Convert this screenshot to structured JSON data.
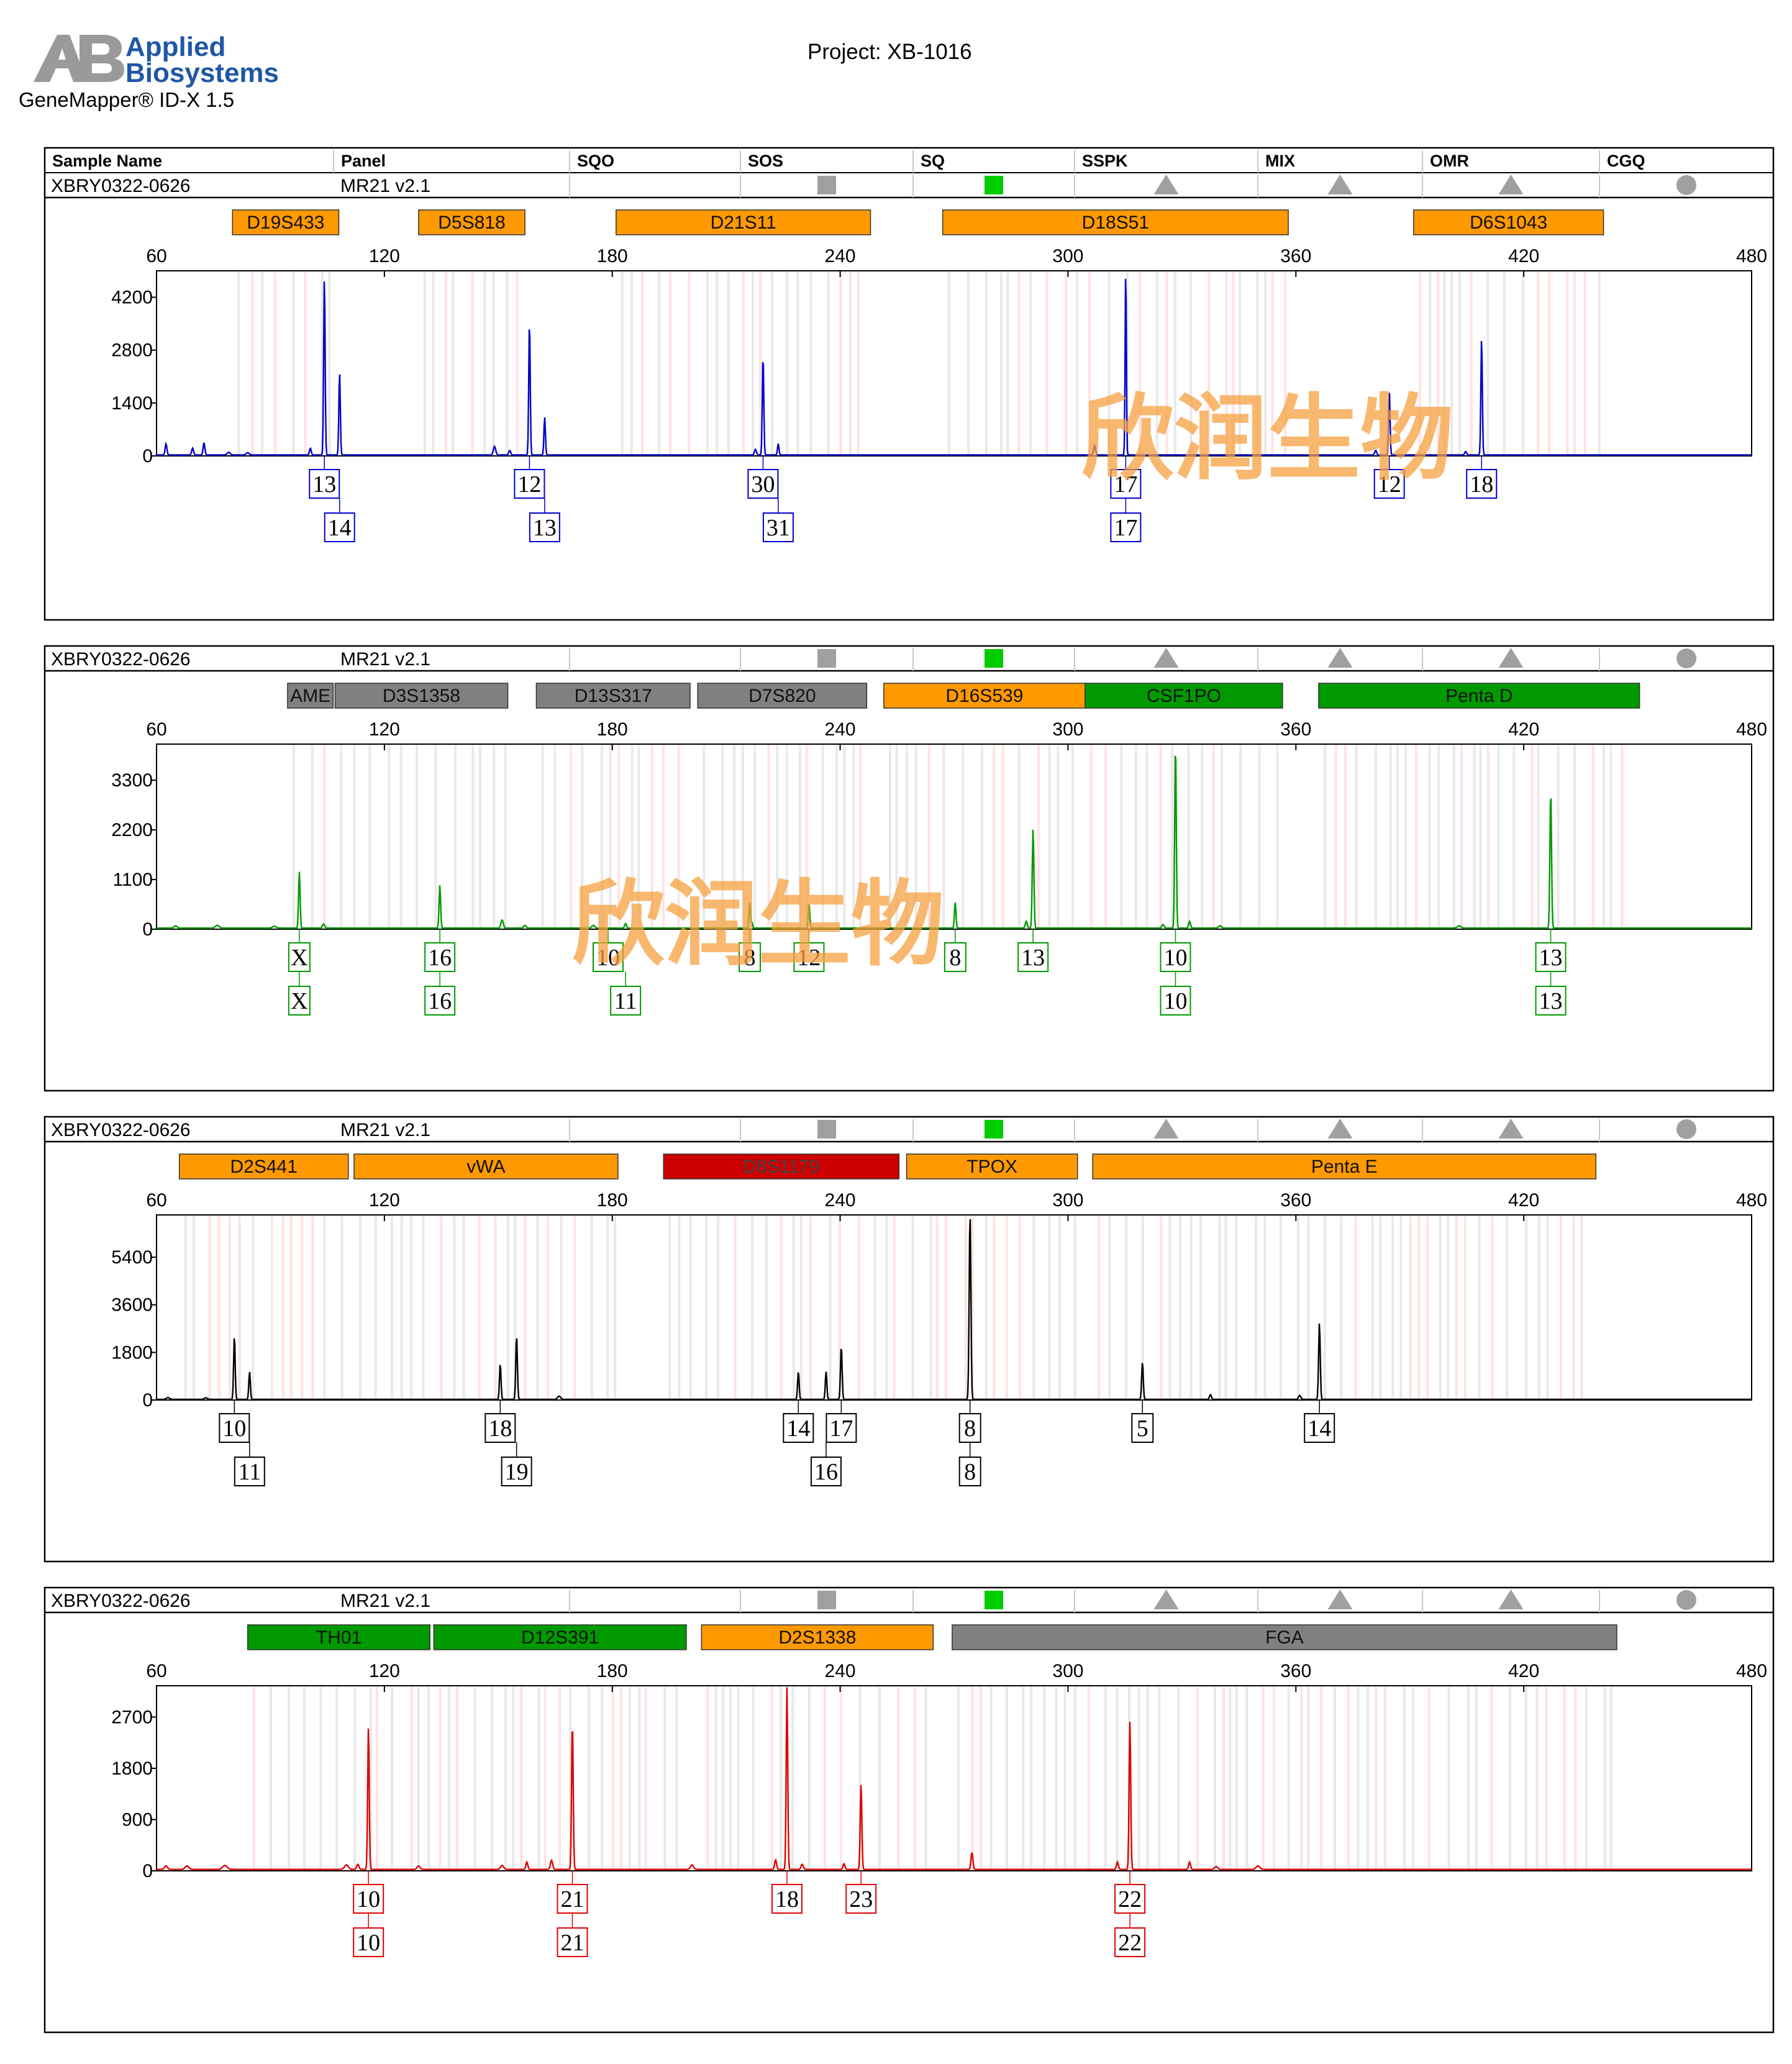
{
  "header": {
    "logo_line1": "Applied",
    "logo_line2": "Biosystems",
    "software": "GeneMapper® ID-X  1.5",
    "project": "Project: XB-1016"
  },
  "table_headers": [
    "Sample Name",
    "Panel",
    "SQO",
    "SOS",
    "SQ",
    "SSPK",
    "MIX",
    "OMR",
    "CGQ"
  ],
  "sample_row": {
    "sample_name": "XBRY0322-0626",
    "panel": "MR21  v2.1",
    "quality_flags": [
      {
        "column": "SOS",
        "shape": "square",
        "color": "#a0a0a0"
      },
      {
        "column": "SQ",
        "shape": "square",
        "color": "#00cc00"
      },
      {
        "column": "SSPK",
        "shape": "triangle",
        "color": "#a0a0a0"
      },
      {
        "column": "MIX",
        "shape": "triangle",
        "color": "#a0a0a0"
      },
      {
        "column": "OMR",
        "shape": "triangle",
        "color": "#a0a0a0"
      },
      {
        "column": "CGQ",
        "shape": "circle",
        "color": "#a0a0a0"
      }
    ]
  },
  "watermark": "欣润生物",
  "colors": {
    "orange": "#ff9900",
    "gray": "#808080",
    "green": "#009900",
    "red": "#cc0000",
    "bin_gray": "#e9e9e9",
    "bin_pink": "#ffe3e3",
    "watermark": "#f5a040"
  },
  "chart_data": [
    {
      "type": "line",
      "dye": "blue",
      "color": "#0000cc",
      "x_range": [
        60,
        480
      ],
      "x_ticks": [
        60,
        120,
        180,
        240,
        300,
        360,
        420,
        480
      ],
      "y_range": [
        0,
        4900
      ],
      "y_ticks": [
        0,
        1400,
        2800,
        4200
      ],
      "loci": [
        {
          "name": "D19S433",
          "start": 80,
          "end": 108,
          "color": "orange"
        },
        {
          "name": "D5S818",
          "start": 129,
          "end": 157,
          "color": "orange"
        },
        {
          "name": "D21S11",
          "start": 181,
          "end": 248,
          "color": "orange"
        },
        {
          "name": "D18S51",
          "start": 267,
          "end": 358,
          "color": "orange"
        },
        {
          "name": "D6S1043",
          "start": 391,
          "end": 441,
          "color": "orange"
        }
      ],
      "peaks": [
        {
          "x": 62.5,
          "y": 300,
          "w": 0.45
        },
        {
          "x": 69.5,
          "y": 180,
          "w": 0.5
        },
        {
          "x": 72.5,
          "y": 320,
          "w": 0.45
        },
        {
          "x": 79,
          "y": 70,
          "w": 0.8
        },
        {
          "x": 84,
          "y": 60,
          "w": 0.8
        },
        {
          "x": 100.5,
          "y": 180,
          "w": 0.45
        },
        {
          "x": 104.2,
          "y": 4700,
          "w": 0.38
        },
        {
          "x": 108.2,
          "y": 2200,
          "w": 0.38
        },
        {
          "x": 149,
          "y": 230,
          "w": 0.6
        },
        {
          "x": 153,
          "y": 120,
          "w": 0.5
        },
        {
          "x": 158.2,
          "y": 3550,
          "w": 0.38
        },
        {
          "x": 162.2,
          "y": 1000,
          "w": 0.38
        },
        {
          "x": 217.7,
          "y": 150,
          "w": 0.5
        },
        {
          "x": 219.7,
          "y": 2650,
          "w": 0.38
        },
        {
          "x": 223.7,
          "y": 300,
          "w": 0.38
        },
        {
          "x": 315.2,
          "y": 5000,
          "w": 0.32
        },
        {
          "x": 307,
          "y": 250,
          "w": 0.5
        },
        {
          "x": 381,
          "y": 120,
          "w": 0.5
        },
        {
          "x": 384.6,
          "y": 1700,
          "w": 0.38
        },
        {
          "x": 404.7,
          "y": 90,
          "w": 0.5
        },
        {
          "x": 408.9,
          "y": 3100,
          "w": 0.38
        }
      ],
      "alleles_top": [
        {
          "x": 104.2,
          "label": "13"
        },
        {
          "x": 158.2,
          "label": "12"
        },
        {
          "x": 219.7,
          "label": "30"
        },
        {
          "x": 315.2,
          "label": "17"
        },
        {
          "x": 384.6,
          "label": "12"
        },
        {
          "x": 408.9,
          "label": "18"
        }
      ],
      "alleles_bottom": [
        {
          "x": 108.2,
          "label": "14"
        },
        {
          "x": 162.2,
          "label": "13"
        },
        {
          "x": 223.7,
          "label": "31"
        },
        {
          "x": 315.2,
          "label": "17"
        }
      ]
    },
    {
      "type": "line",
      "dye": "green",
      "color": "#009900",
      "x_range": [
        60,
        480
      ],
      "x_ticks": [
        60,
        120,
        180,
        240,
        300,
        360,
        420,
        480
      ],
      "y_range": [
        0,
        4100
      ],
      "y_ticks": [
        0,
        1100,
        2200,
        3300
      ],
      "loci": [
        {
          "name": "AME",
          "start": 94.5,
          "end": 106.5,
          "color": "gray"
        },
        {
          "name": "D3S1358",
          "start": 107,
          "end": 152.5,
          "color": "gray"
        },
        {
          "name": "D13S317",
          "start": 160,
          "end": 200.5,
          "color": "gray"
        },
        {
          "name": "D7S820",
          "start": 202.5,
          "end": 247,
          "color": "gray"
        },
        {
          "name": "D16S539",
          "start": 251.5,
          "end": 304.5,
          "color": "orange"
        },
        {
          "name": "CSF1PO",
          "start": 304.5,
          "end": 356.5,
          "color": "green"
        },
        {
          "name": "Penta D",
          "start": 366,
          "end": 450.5,
          "color": "green"
        }
      ],
      "peaks": [
        {
          "x": 65,
          "y": 50,
          "w": 0.8
        },
        {
          "x": 76,
          "y": 60,
          "w": 1.0
        },
        {
          "x": 91,
          "y": 40,
          "w": 1.0
        },
        {
          "x": 97.6,
          "y": 1250,
          "w": 0.4
        },
        {
          "x": 104,
          "y": 90,
          "w": 0.6
        },
        {
          "x": 134.6,
          "y": 950,
          "w": 0.4
        },
        {
          "x": 151,
          "y": 180,
          "w": 0.6
        },
        {
          "x": 157,
          "y": 60,
          "w": 0.7
        },
        {
          "x": 175,
          "y": 60,
          "w": 0.8
        },
        {
          "x": 183.5,
          "y": 100,
          "w": 0.5
        },
        {
          "x": 216.2,
          "y": 560,
          "w": 0.4
        },
        {
          "x": 216.8,
          "y": 120,
          "w": 0.3
        },
        {
          "x": 231.8,
          "y": 550,
          "w": 0.4
        },
        {
          "x": 270.3,
          "y": 570,
          "w": 0.4
        },
        {
          "x": 289,
          "y": 150,
          "w": 0.5
        },
        {
          "x": 290.8,
          "y": 2200,
          "w": 0.42
        },
        {
          "x": 325,
          "y": 80,
          "w": 0.6
        },
        {
          "x": 328.3,
          "y": 4100,
          "w": 0.4
        },
        {
          "x": 332,
          "y": 150,
          "w": 0.5
        },
        {
          "x": 340,
          "y": 50,
          "w": 0.8
        },
        {
          "x": 403,
          "y": 50,
          "w": 1.0
        },
        {
          "x": 427.1,
          "y": 3050,
          "w": 0.42
        }
      ],
      "alleles_top": [
        {
          "x": 97.6,
          "label": "X"
        },
        {
          "x": 134.6,
          "label": "16"
        },
        {
          "x": 178.9,
          "label": "10"
        },
        {
          "x": 216.2,
          "label": "8"
        },
        {
          "x": 231.8,
          "label": "12"
        },
        {
          "x": 270.3,
          "label": "8"
        },
        {
          "x": 290.8,
          "label": "13"
        },
        {
          "x": 328.3,
          "label": "10"
        },
        {
          "x": 427.1,
          "label": "13"
        }
      ],
      "alleles_bottom": [
        {
          "x": 97.6,
          "label": "X"
        },
        {
          "x": 134.6,
          "label": "16"
        },
        {
          "x": 183.5,
          "label": "11"
        },
        {
          "x": 328.3,
          "label": "10"
        },
        {
          "x": 427.1,
          "label": "13"
        }
      ]
    },
    {
      "type": "line",
      "dye": "black",
      "color": "#000000",
      "x_range": [
        60,
        480
      ],
      "x_ticks": [
        60,
        120,
        180,
        240,
        300,
        360,
        420,
        480
      ],
      "y_range": [
        0,
        7000
      ],
      "y_ticks": [
        0,
        1800,
        3600,
        5400
      ],
      "loci": [
        {
          "name": "D2S441",
          "start": 66,
          "end": 110.5,
          "color": "orange"
        },
        {
          "name": "vWA",
          "start": 112,
          "end": 181.5,
          "color": "orange"
        },
        {
          "name": "D8S1179",
          "start": 193.5,
          "end": 255.5,
          "color": "red"
        },
        {
          "name": "TPOX",
          "start": 257.5,
          "end": 302.5,
          "color": "orange"
        },
        {
          "name": "Penta E",
          "start": 306.5,
          "end": 439,
          "color": "orange"
        }
      ],
      "peaks": [
        {
          "x": 63,
          "y": 70,
          "w": 0.8
        },
        {
          "x": 73,
          "y": 60,
          "w": 0.8
        },
        {
          "x": 80.5,
          "y": 2400,
          "w": 0.4
        },
        {
          "x": 84.5,
          "y": 1050,
          "w": 0.4
        },
        {
          "x": 150.5,
          "y": 1350,
          "w": 0.4
        },
        {
          "x": 154.8,
          "y": 2400,
          "w": 0.42
        },
        {
          "x": 166,
          "y": 120,
          "w": 0.8
        },
        {
          "x": 229,
          "y": 1050,
          "w": 0.4
        },
        {
          "x": 236.3,
          "y": 1050,
          "w": 0.4
        },
        {
          "x": 240.3,
          "y": 2000,
          "w": 0.42
        },
        {
          "x": 274.2,
          "y": 7000,
          "w": 0.45
        },
        {
          "x": 319.6,
          "y": 1400,
          "w": 0.42
        },
        {
          "x": 337.5,
          "y": 180,
          "w": 0.5
        },
        {
          "x": 361,
          "y": 150,
          "w": 0.6
        },
        {
          "x": 366.2,
          "y": 2900,
          "w": 0.42
        }
      ],
      "alleles_top": [
        {
          "x": 80.5,
          "label": "10"
        },
        {
          "x": 150.5,
          "label": "18"
        },
        {
          "x": 229,
          "label": "14"
        },
        {
          "x": 240.3,
          "label": "17"
        },
        {
          "x": 274.2,
          "label": "8"
        },
        {
          "x": 319.6,
          "label": "5"
        },
        {
          "x": 366.2,
          "label": "14"
        }
      ],
      "alleles_bottom": [
        {
          "x": 84.5,
          "label": "11"
        },
        {
          "x": 154.8,
          "label": "19"
        },
        {
          "x": 236.3,
          "label": "16"
        },
        {
          "x": 274.2,
          "label": "8"
        }
      ]
    },
    {
      "type": "line",
      "dye": "red",
      "color": "#dd0000",
      "x_range": [
        60,
        480
      ],
      "x_ticks": [
        60,
        120,
        180,
        240,
        300,
        360,
        420,
        480
      ],
      "y_range": [
        0,
        3250
      ],
      "y_ticks": [
        0,
        900,
        1800,
        2700
      ],
      "loci": [
        {
          "name": "TH01",
          "start": 84,
          "end": 132,
          "color": "green"
        },
        {
          "name": "D12S391",
          "start": 133,
          "end": 199.5,
          "color": "green"
        },
        {
          "name": "D2S1338",
          "start": 203.5,
          "end": 264.5,
          "color": "orange"
        },
        {
          "name": "FGA",
          "start": 269.5,
          "end": 444.5,
          "color": "gray"
        }
      ],
      "peaks": [
        {
          "x": 62.5,
          "y": 60,
          "w": 0.8
        },
        {
          "x": 68,
          "y": 60,
          "w": 1.0
        },
        {
          "x": 78,
          "y": 70,
          "w": 1.2
        },
        {
          "x": 110,
          "y": 80,
          "w": 1.0
        },
        {
          "x": 113,
          "y": 90,
          "w": 0.6
        },
        {
          "x": 115.8,
          "y": 2500,
          "w": 0.4
        },
        {
          "x": 129,
          "y": 60,
          "w": 0.8
        },
        {
          "x": 151,
          "y": 70,
          "w": 0.8
        },
        {
          "x": 157.5,
          "y": 130,
          "w": 0.5
        },
        {
          "x": 164,
          "y": 160,
          "w": 0.6
        },
        {
          "x": 169.5,
          "y": 2600,
          "w": 0.42
        },
        {
          "x": 201,
          "y": 80,
          "w": 0.8
        },
        {
          "x": 223,
          "y": 170,
          "w": 0.5
        },
        {
          "x": 226,
          "y": 3200,
          "w": 0.4
        },
        {
          "x": 230,
          "y": 90,
          "w": 0.6
        },
        {
          "x": 241,
          "y": 100,
          "w": 0.5
        },
        {
          "x": 245.5,
          "y": 1500,
          "w": 0.42
        },
        {
          "x": 274.7,
          "y": 300,
          "w": 0.5
        },
        {
          "x": 313,
          "y": 130,
          "w": 0.5
        },
        {
          "x": 316.3,
          "y": 2600,
          "w": 0.42
        },
        {
          "x": 332,
          "y": 130,
          "w": 0.5
        },
        {
          "x": 339,
          "y": 50,
          "w": 0.8
        },
        {
          "x": 350,
          "y": 60,
          "w": 1.0
        }
      ],
      "alleles_top": [
        {
          "x": 115.8,
          "label": "10"
        },
        {
          "x": 169.5,
          "label": "21"
        },
        {
          "x": 226,
          "label": "18"
        },
        {
          "x": 245.5,
          "label": "23"
        },
        {
          "x": 316.3,
          "label": "22"
        }
      ],
      "alleles_bottom": [
        {
          "x": 115.8,
          "label": "10"
        },
        {
          "x": 169.5,
          "label": "21"
        },
        {
          "x": 316.3,
          "label": "22"
        }
      ]
    }
  ]
}
